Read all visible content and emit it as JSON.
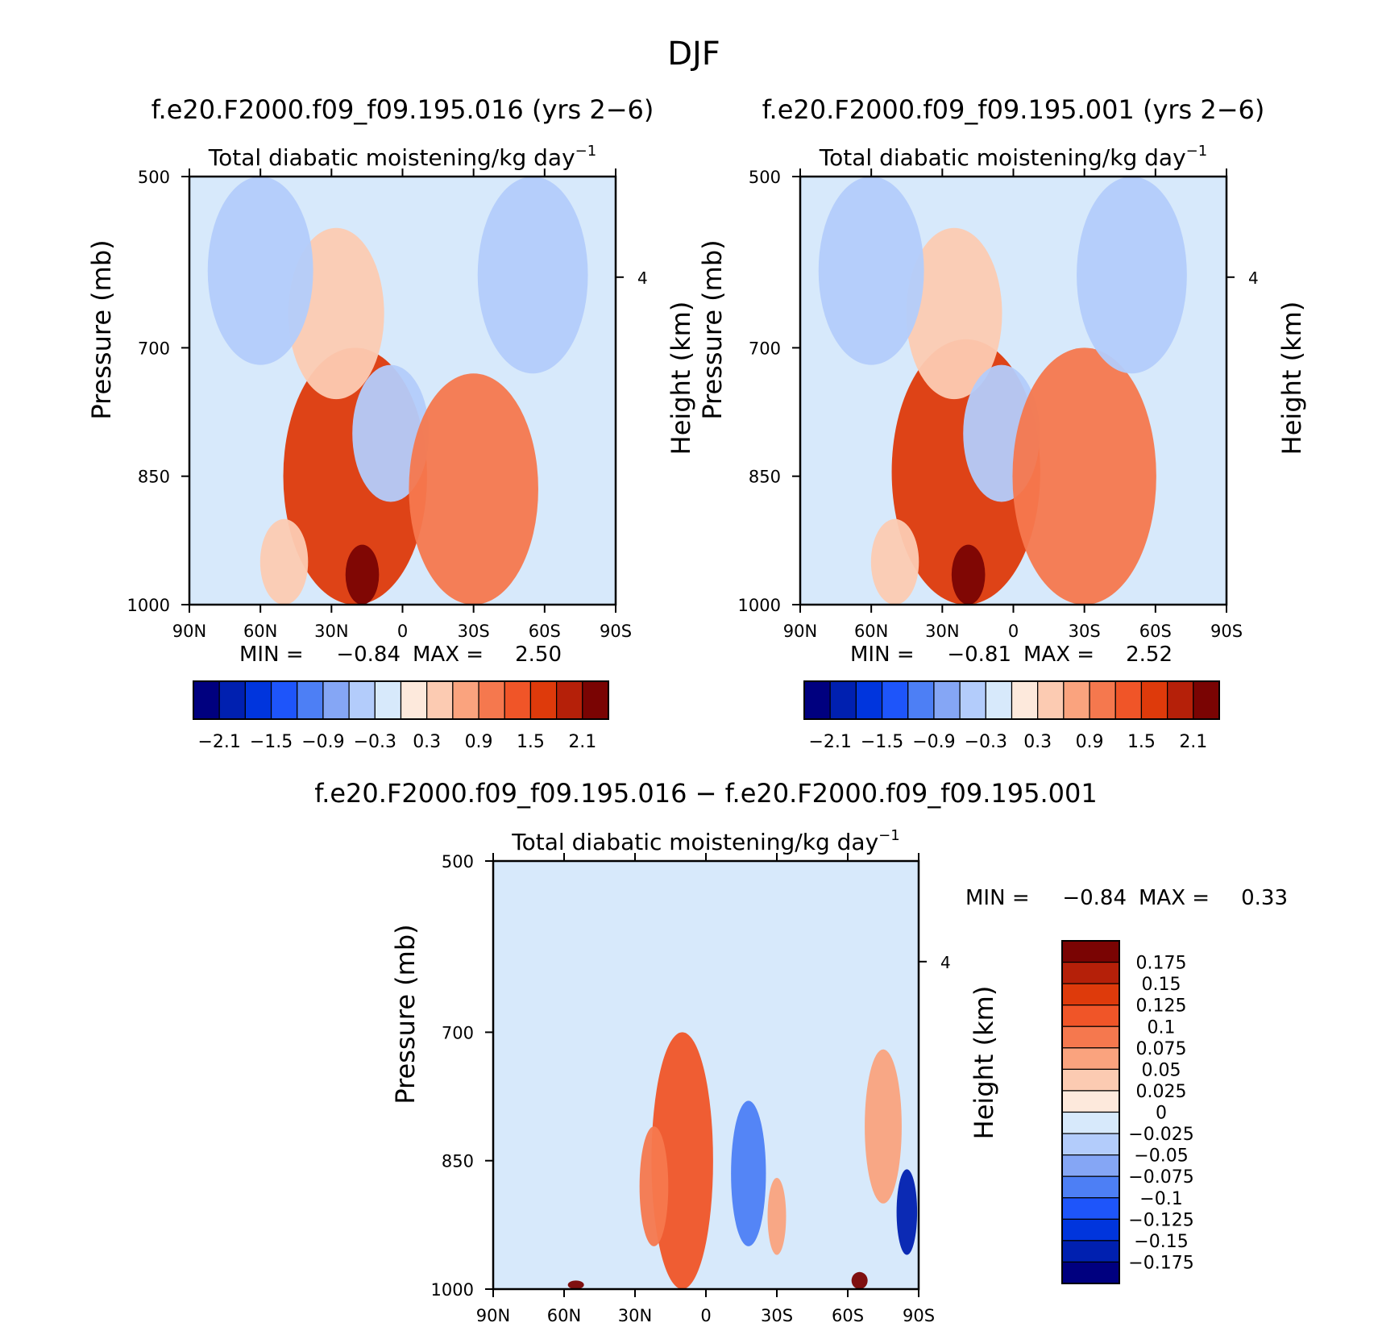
{
  "figure_title": "DJF",
  "variable_label": "Total diabatic moistening/kg day",
  "variable_exponent": "−1",
  "chart_data": [
    {
      "type": "heatmap",
      "id": "panel-case",
      "title": "f.e20.F2000.f09_f09.195.016 (yrs 2−6)",
      "subtitle": "Total diabatic moistening/kg day⁻¹",
      "xlabel": "",
      "ylabel": "Pressure (mb)",
      "y2label": "Height (km)",
      "xlim": [
        90,
        -90
      ],
      "xticks": [
        90,
        60,
        30,
        0,
        -30,
        -60,
        -90
      ],
      "xtick_labels": [
        "90N",
        "60N",
        "30N",
        "0",
        "30S",
        "60S",
        "90S"
      ],
      "ylim": [
        500,
        1000
      ],
      "yticks": [
        500,
        700,
        850,
        1000
      ],
      "ytick_labels": [
        "500",
        "700",
        "850",
        "1000"
      ],
      "y2ticks": [
        4
      ],
      "y2tick_labels": [
        "4"
      ],
      "min_label": "MIN =",
      "min_value": "−0.84",
      "max_label": "MAX =",
      "max_value": "2.50",
      "colorbar": {
        "orientation": "horizontal",
        "levels": [
          -2.1,
          -1.8,
          -1.5,
          -1.2,
          -0.9,
          -0.6,
          -0.3,
          0,
          0.3,
          0.6,
          0.9,
          1.2,
          1.5,
          1.8,
          2.1
        ],
        "labels": [
          "−2.1",
          "−1.5",
          "−0.9",
          "−0.3",
          "0.3",
          "0.9",
          "1.5",
          "2.1"
        ]
      },
      "features": [
        {
          "lat": 20,
          "p_top": 700,
          "p_bottom": 1000,
          "value": 1.5
        },
        {
          "lat": 17,
          "p_top": 930,
          "p_bottom": 1000,
          "value": 2.5
        },
        {
          "lat": 28,
          "p_top": 560,
          "p_bottom": 760,
          "value": 0.3
        },
        {
          "lat": 5,
          "p_top": 720,
          "p_bottom": 880,
          "value": -0.5
        },
        {
          "lat": -30,
          "p_top": 730,
          "p_bottom": 1000,
          "value": 1.0
        },
        {
          "lat": 60,
          "p_top": 500,
          "p_bottom": 720,
          "value": -0.5
        },
        {
          "lat": -55,
          "p_top": 500,
          "p_bottom": 730,
          "value": -0.5
        },
        {
          "lat": 50,
          "p_top": 900,
          "p_bottom": 1000,
          "value": 0.3
        }
      ]
    },
    {
      "type": "heatmap",
      "id": "panel-control",
      "title": "f.e20.F2000.f09_f09.195.001 (yrs 2−6)",
      "subtitle": "Total diabatic moistening/kg day⁻¹",
      "xlabel": "",
      "ylabel": "Pressure (mb)",
      "y2label": "Height (km)",
      "xlim": [
        90,
        -90
      ],
      "xticks": [
        90,
        60,
        30,
        0,
        -30,
        -60,
        -90
      ],
      "xtick_labels": [
        "90N",
        "60N",
        "30N",
        "0",
        "30S",
        "60S",
        "90S"
      ],
      "ylim": [
        500,
        1000
      ],
      "yticks": [
        500,
        700,
        850,
        1000
      ],
      "ytick_labels": [
        "500",
        "700",
        "850",
        "1000"
      ],
      "y2ticks": [
        4
      ],
      "y2tick_labels": [
        "4"
      ],
      "min_label": "MIN =",
      "min_value": "−0.81",
      "max_label": "MAX =",
      "max_value": "2.52",
      "colorbar": {
        "orientation": "horizontal",
        "levels": [
          -2.1,
          -1.8,
          -1.5,
          -1.2,
          -0.9,
          -0.6,
          -0.3,
          0,
          0.3,
          0.6,
          0.9,
          1.2,
          1.5,
          1.8,
          2.1
        ],
        "labels": [
          "−2.1",
          "−1.5",
          "−0.9",
          "−0.3",
          "0.3",
          "0.9",
          "1.5",
          "2.1"
        ]
      },
      "features": [
        {
          "lat": 20,
          "p_top": 690,
          "p_bottom": 1000,
          "value": 1.5
        },
        {
          "lat": 19,
          "p_top": 930,
          "p_bottom": 1000,
          "value": 2.5
        },
        {
          "lat": 25,
          "p_top": 560,
          "p_bottom": 760,
          "value": 0.3
        },
        {
          "lat": 5,
          "p_top": 720,
          "p_bottom": 880,
          "value": -0.5
        },
        {
          "lat": -30,
          "p_top": 700,
          "p_bottom": 1000,
          "value": 1.0
        },
        {
          "lat": 60,
          "p_top": 500,
          "p_bottom": 720,
          "value": -0.5
        },
        {
          "lat": -50,
          "p_top": 500,
          "p_bottom": 730,
          "value": -0.5
        },
        {
          "lat": 50,
          "p_top": 900,
          "p_bottom": 1000,
          "value": 0.3
        }
      ]
    },
    {
      "type": "heatmap",
      "id": "panel-difference",
      "title": "f.e20.F2000.f09_f09.195.016 − f.e20.F2000.f09_f09.195.001",
      "subtitle": "Total diabatic moistening/kg day⁻¹",
      "xlabel": "",
      "ylabel": "Pressure (mb)",
      "y2label": "Height (km)",
      "xlim": [
        90,
        -90
      ],
      "xticks": [
        90,
        60,
        30,
        0,
        -30,
        -60,
        -90
      ],
      "xtick_labels": [
        "90N",
        "60N",
        "30N",
        "0",
        "30S",
        "60S",
        "90S"
      ],
      "ylim": [
        500,
        1000
      ],
      "yticks": [
        500,
        700,
        850,
        1000
      ],
      "ytick_labels": [
        "500",
        "700",
        "850",
        "1000"
      ],
      "y2ticks": [
        4
      ],
      "y2tick_labels": [
        "4"
      ],
      "min_label": "MIN =",
      "min_value": "−0.84",
      "max_label": "MAX =",
      "max_value": "0.33",
      "colorbar": {
        "orientation": "vertical",
        "levels": [
          -0.175,
          -0.15,
          -0.125,
          -0.1,
          -0.075,
          -0.05,
          -0.025,
          0,
          0.025,
          0.05,
          0.075,
          0.1,
          0.125,
          0.15,
          0.175
        ],
        "labels": [
          "0.175",
          "0.15",
          "0.125",
          "0.1",
          "0.075",
          "0.05",
          "0.025",
          "0",
          "−0.025",
          "−0.05",
          "−0.075",
          "−0.1",
          "−0.125",
          "−0.15",
          "−0.175"
        ]
      },
      "features": [
        {
          "lat": 10,
          "p_top": 700,
          "p_bottom": 1000,
          "value": 0.1
        },
        {
          "lat": 22,
          "p_top": 810,
          "p_bottom": 950,
          "value": 0.075
        },
        {
          "lat": -18,
          "p_top": 780,
          "p_bottom": 950,
          "value": -0.1
        },
        {
          "lat": -30,
          "p_top": 870,
          "p_bottom": 960,
          "value": 0.05
        },
        {
          "lat": -65,
          "p_top": 980,
          "p_bottom": 1000,
          "value": 0.2
        },
        {
          "lat": -75,
          "p_top": 720,
          "p_bottom": 900,
          "value": 0.05
        },
        {
          "lat": 55,
          "p_top": 990,
          "p_bottom": 1000,
          "value": 0.2
        },
        {
          "lat": -85,
          "p_top": 860,
          "p_bottom": 960,
          "value": -0.175
        }
      ]
    }
  ],
  "palette": [
    "#00007f",
    "#0020b0",
    "#0035dd",
    "#1e55fa",
    "#4d7ff5",
    "#85a6f5",
    "#b3ccfb",
    "#d7e9fb",
    "#fde9dc",
    "#fccbb2",
    "#faa37e",
    "#f5784e",
    "#f05528",
    "#de3a0b",
    "#b52009",
    "#7a0403"
  ]
}
